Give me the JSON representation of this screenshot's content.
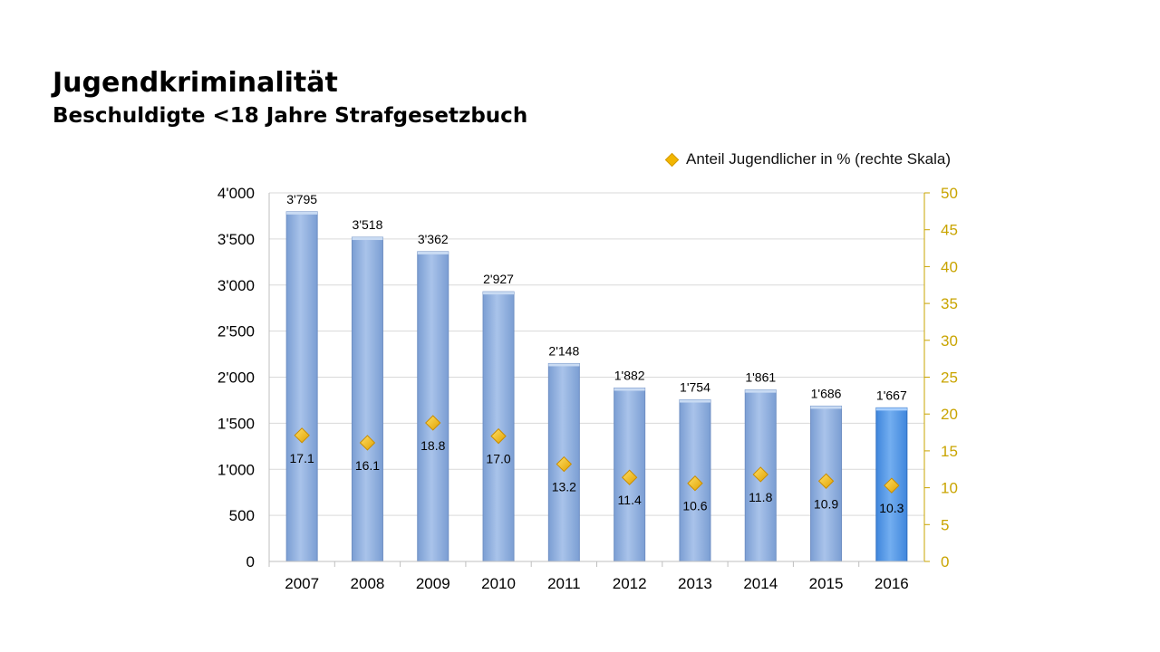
{
  "title": "Jugendkriminalität",
  "subtitle": "Beschuldigte <18 Jahre Strafgesetzbuch",
  "legend": {
    "secondary_label": "Anteil Jugendlicher in % (rechte Skala)"
  },
  "colors": {
    "bar": "#8eaedc",
    "bar_highlight": "#5b9be6",
    "marker": "#f2b600",
    "right_axis": "#c9a400",
    "grid": "#d9d9d9"
  },
  "chart_data": {
    "type": "bar",
    "categories": [
      "2007",
      "2008",
      "2009",
      "2010",
      "2011",
      "2012",
      "2013",
      "2014",
      "2015",
      "2016"
    ],
    "series": [
      {
        "values": [
          3795,
          3518,
          3362,
          2927,
          2148,
          1882,
          1754,
          1861,
          1686,
          1667
        ],
        "value_labels": [
          "3'795",
          "3'518",
          "3'362",
          "2'927",
          "2'148",
          "1'882",
          "1'754",
          "1'861",
          "1'686",
          "1'667"
        ],
        "axis": "left"
      },
      {
        "name": "Anteil Jugendlicher in % (rechte Skala)",
        "values": [
          17.1,
          16.1,
          18.8,
          17.0,
          13.2,
          11.4,
          10.6,
          11.8,
          10.9,
          10.3
        ],
        "value_labels": [
          "17.1",
          "16.1",
          "18.8",
          "17.0",
          "13.2",
          "11.4",
          "10.6",
          "11.8",
          "10.9",
          "10.3"
        ],
        "axis": "right",
        "marker": "diamond"
      }
    ],
    "ylim_left": [
      0,
      4000
    ],
    "ylim_right": [
      0,
      50
    ],
    "yticks_left": [
      "0",
      "500",
      "1'000",
      "1'500",
      "2'000",
      "2'500",
      "3'000",
      "3'500",
      "4'000"
    ],
    "yticks_right": [
      "0",
      "5",
      "10",
      "15",
      "20",
      "25",
      "30",
      "35",
      "40",
      "45",
      "50"
    ],
    "grid": true,
    "legend_position": "top-right"
  }
}
